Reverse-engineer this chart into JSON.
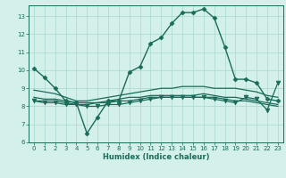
{
  "xlabel": "Humidex (Indice chaleur)",
  "bg_color": "#d4f0ea",
  "line_color": "#1a6b5a",
  "grid_color": "#a8d8ce",
  "xlim": [
    -0.5,
    23.5
  ],
  "ylim": [
    6,
    13.6
  ],
  "yticks": [
    6,
    7,
    8,
    9,
    10,
    11,
    12,
    13
  ],
  "xticks": [
    0,
    1,
    2,
    3,
    4,
    5,
    6,
    7,
    8,
    9,
    10,
    11,
    12,
    13,
    14,
    15,
    16,
    17,
    18,
    19,
    20,
    21,
    22,
    23
  ],
  "series": [
    {
      "x": [
        0,
        1,
        2,
        3,
        4,
        5,
        6,
        7,
        8,
        9,
        10,
        11,
        12,
        13,
        14,
        15,
        16,
        17,
        18,
        19,
        20,
        21,
        22,
        23
      ],
      "y": [
        10.1,
        9.6,
        9.0,
        8.3,
        8.2,
        6.5,
        7.4,
        8.3,
        8.3,
        9.9,
        10.2,
        11.5,
        11.8,
        12.6,
        13.2,
        13.2,
        13.4,
        12.9,
        11.3,
        9.5,
        9.5,
        9.3,
        8.4,
        8.3
      ],
      "marker": "D",
      "markersize": 2.5,
      "linewidth": 1.0
    },
    {
      "x": [
        0,
        1,
        2,
        3,
        4,
        5,
        6,
        7,
        8,
        9,
        10,
        11,
        12,
        13,
        14,
        15,
        16,
        17,
        18,
        19,
        20,
        21,
        22,
        23
      ],
      "y": [
        8.9,
        8.8,
        8.7,
        8.5,
        8.3,
        8.3,
        8.4,
        8.5,
        8.6,
        8.7,
        8.8,
        8.9,
        9.0,
        9.0,
        9.1,
        9.1,
        9.1,
        9.0,
        9.0,
        9.0,
        8.9,
        8.8,
        8.6,
        8.5
      ],
      "marker": null,
      "markersize": 0,
      "linewidth": 0.9
    },
    {
      "x": [
        0,
        1,
        2,
        3,
        4,
        5,
        6,
        7,
        8,
        9,
        10,
        11,
        12,
        13,
        14,
        15,
        16,
        17,
        18,
        19,
        20,
        21,
        22,
        23
      ],
      "y": [
        8.5,
        8.4,
        8.4,
        8.3,
        8.2,
        8.2,
        8.2,
        8.3,
        8.4,
        8.5,
        8.5,
        8.6,
        8.6,
        8.6,
        8.6,
        8.6,
        8.7,
        8.6,
        8.5,
        8.5,
        8.4,
        8.3,
        8.2,
        8.1
      ],
      "marker": null,
      "markersize": 0,
      "linewidth": 0.9
    },
    {
      "x": [
        0,
        1,
        2,
        3,
        4,
        5,
        6,
        7,
        8,
        9,
        10,
        11,
        12,
        13,
        14,
        15,
        16,
        17,
        18,
        19,
        20,
        21,
        22,
        23
      ],
      "y": [
        8.3,
        8.3,
        8.3,
        8.2,
        8.1,
        8.1,
        8.2,
        8.2,
        8.3,
        8.3,
        8.4,
        8.5,
        8.5,
        8.5,
        8.5,
        8.5,
        8.5,
        8.5,
        8.4,
        8.3,
        8.3,
        8.2,
        8.1,
        8.0
      ],
      "marker": null,
      "markersize": 0,
      "linewidth": 0.9
    },
    {
      "x": [
        0,
        1,
        2,
        3,
        4,
        5,
        6,
        7,
        8,
        9,
        10,
        11,
        12,
        13,
        14,
        15,
        16,
        17,
        18,
        19,
        20,
        21,
        22,
        23
      ],
      "y": [
        8.3,
        8.2,
        8.2,
        8.1,
        8.1,
        8.0,
        8.0,
        8.1,
        8.1,
        8.2,
        8.3,
        8.4,
        8.5,
        8.5,
        8.5,
        8.5,
        8.5,
        8.4,
        8.3,
        8.2,
        8.5,
        8.4,
        7.8,
        9.3
      ],
      "marker": "v",
      "markersize": 3.5,
      "linewidth": 0.9
    }
  ]
}
